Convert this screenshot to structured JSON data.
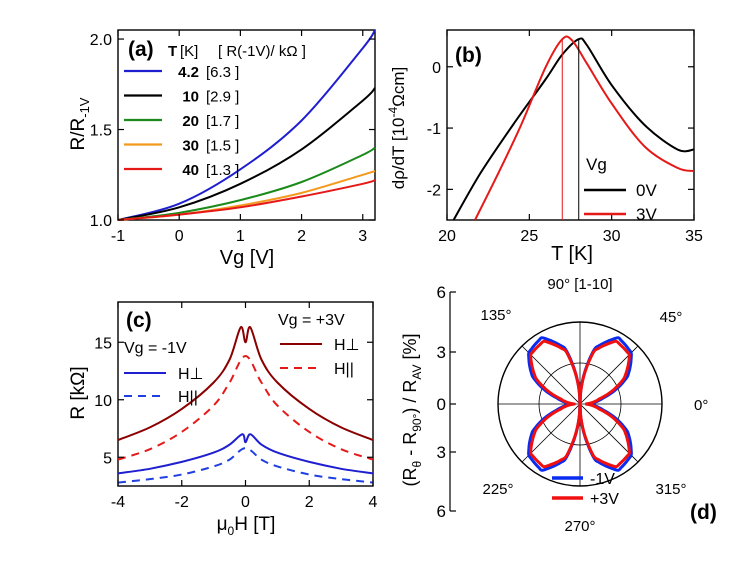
{
  "colors": {
    "blue": "#1f1fd0",
    "black": "#000000",
    "green": "#1a8a1a",
    "orange": "#f39a1e",
    "red": "#e61919",
    "darkred": "#8b0000",
    "dashblue": "#1f3fe0",
    "dashred": "#e61919",
    "pure_blue": "#0a2cf0",
    "pure_red": "#f01010"
  },
  "chart_data": [
    {
      "panel": "(a)",
      "type": "line",
      "xlabel": "Vg [V]",
      "ylabel": "R/R-1V",
      "xlim": [
        -1,
        3.2
      ],
      "ylim": [
        1.0,
        2.05
      ],
      "xticks": [
        "-1",
        "0",
        "1",
        "2",
        "3"
      ],
      "yticks": [
        "1.0",
        "1.5",
        "2.0"
      ],
      "legend_header": {
        "t": "T",
        "unit": "[K]",
        "r": "[ R(-1V)/ kΩ ]"
      },
      "series": [
        {
          "name": "4.2",
          "r": "[6.3 ]",
          "color": "blue",
          "points": [
            [
              -1,
              1.0
            ],
            [
              0,
              1.09
            ],
            [
              1,
              1.28
            ],
            [
              2,
              1.55
            ],
            [
              3,
              1.95
            ],
            [
              3.2,
              2.05
            ]
          ]
        },
        {
          "name": "10",
          "r": "[2.9 ]",
          "color": "black",
          "points": [
            [
              -1,
              1.0
            ],
            [
              0,
              1.07
            ],
            [
              1,
              1.2
            ],
            [
              2,
              1.39
            ],
            [
              3,
              1.66
            ],
            [
              3.2,
              1.73
            ]
          ]
        },
        {
          "name": "20",
          "r": "[1.7 ]",
          "color": "green",
          "points": [
            [
              -1,
              1.0
            ],
            [
              0,
              1.04
            ],
            [
              1,
              1.11
            ],
            [
              2,
              1.21
            ],
            [
              3,
              1.36
            ],
            [
              3.2,
              1.4
            ]
          ]
        },
        {
          "name": "30",
          "r": "[1.5 ]",
          "color": "orange",
          "points": [
            [
              -1,
              1.0
            ],
            [
              0,
              1.03
            ],
            [
              1,
              1.08
            ],
            [
              2,
              1.15
            ],
            [
              3,
              1.25
            ],
            [
              3.2,
              1.27
            ]
          ]
        },
        {
          "name": "40",
          "r": "[1.3 ]",
          "color": "red",
          "points": [
            [
              -1,
              1.0
            ],
            [
              0,
              1.03
            ],
            [
              1,
              1.07
            ],
            [
              2,
              1.13
            ],
            [
              3,
              1.2
            ],
            [
              3.2,
              1.22
            ]
          ]
        }
      ]
    },
    {
      "panel": "(b)",
      "type": "line",
      "xlabel": "T [K]",
      "ylabel": "dρ/dT [10-4Ωcm]",
      "xlim": [
        20,
        35
      ],
      "ylim": [
        -2.5,
        0.6
      ],
      "xticks": [
        "20",
        "25",
        "30",
        "35"
      ],
      "yticks": [
        "0",
        "-1",
        "-2"
      ],
      "legend_title": "Vg",
      "markers": [
        27.0,
        28.0
      ],
      "series": [
        {
          "name": "0V",
          "color": "black",
          "points": [
            [
              20.4,
              -2.5
            ],
            [
              22,
              -1.75
            ],
            [
              24,
              -0.95
            ],
            [
              26,
              -0.2
            ],
            [
              27,
              0.2
            ],
            [
              28,
              0.45
            ],
            [
              28.5,
              0.35
            ],
            [
              30,
              -0.3
            ],
            [
              32,
              -0.95
            ],
            [
              34,
              -1.35
            ],
            [
              35,
              -1.35
            ]
          ]
        },
        {
          "name": "3V",
          "color": "red",
          "points": [
            [
              21.7,
              -2.5
            ],
            [
              23,
              -1.8
            ],
            [
              24.5,
              -0.95
            ],
            [
              26,
              0.0
            ],
            [
              27,
              0.45
            ],
            [
              27.6,
              0.43
            ],
            [
              28.5,
              0.05
            ],
            [
              30,
              -0.6
            ],
            [
              32,
              -1.3
            ],
            [
              34,
              -1.65
            ],
            [
              35,
              -1.7
            ]
          ]
        }
      ]
    },
    {
      "panel": "(c)",
      "type": "line",
      "xlabel": "μ0H [T]",
      "ylabel": "R [kΩ]",
      "xlim": [
        -4,
        4
      ],
      "ylim": [
        2.5,
        18.5
      ],
      "xticks": [
        "-4",
        "-2",
        "0",
        "2",
        "4"
      ],
      "yticks": [
        "5",
        "10",
        "15"
      ],
      "groups": [
        {
          "label": "Vg = -1V",
          "perp": "H⊥",
          "par": "H||"
        },
        {
          "label": "Vg = +3V",
          "perp": "H⊥",
          "par": "H||"
        }
      ],
      "series": [
        {
          "name": "+3V H⊥",
          "color": "darkred",
          "dash": false,
          "points": [
            [
              -4,
              6.5
            ],
            [
              -3,
              7.6
            ],
            [
              -2,
              9.2
            ],
            [
              -1,
              11.5
            ],
            [
              -0.5,
              13.5
            ],
            [
              -0.15,
              16.3
            ],
            [
              0,
              15.0
            ],
            [
              0.15,
              16.3
            ],
            [
              0.5,
              13.5
            ],
            [
              1,
              11.5
            ],
            [
              2,
              9.2
            ],
            [
              3,
              7.6
            ],
            [
              4,
              6.5
            ]
          ]
        },
        {
          "name": "+3V H||",
          "color": "dashred",
          "dash": true,
          "points": [
            [
              -4,
              4.8
            ],
            [
              -3,
              5.7
            ],
            [
              -2,
              7.2
            ],
            [
              -1,
              9.5
            ],
            [
              -0.5,
              11.5
            ],
            [
              0,
              13.8
            ],
            [
              0.5,
              11.5
            ],
            [
              1,
              9.5
            ],
            [
              2,
              7.2
            ],
            [
              3,
              5.7
            ],
            [
              4,
              4.8
            ]
          ]
        },
        {
          "name": "-1V H⊥",
          "color": "blue",
          "dash": false,
          "points": [
            [
              -4,
              3.6
            ],
            [
              -3,
              4.0
            ],
            [
              -2,
              4.6
            ],
            [
              -1,
              5.4
            ],
            [
              -0.5,
              6.1
            ],
            [
              -0.1,
              7.0
            ],
            [
              0,
              6.3
            ],
            [
              0.15,
              7.0
            ],
            [
              0.5,
              6.1
            ],
            [
              1,
              5.4
            ],
            [
              2,
              4.6
            ],
            [
              3,
              4.0
            ],
            [
              4,
              3.6
            ]
          ]
        },
        {
          "name": "-1V H||",
          "color": "dashblue",
          "dash": true,
          "points": [
            [
              -4,
              2.8
            ],
            [
              -3,
              3.1
            ],
            [
              -2,
              3.5
            ],
            [
              -1,
              4.2
            ],
            [
              -0.5,
              4.8
            ],
            [
              0,
              5.8
            ],
            [
              0.5,
              4.8
            ],
            [
              1,
              4.2
            ],
            [
              2,
              3.5
            ],
            [
              3,
              3.1
            ],
            [
              4,
              2.8
            ]
          ]
        }
      ]
    },
    {
      "panel": "(d)",
      "type": "polar",
      "ylabel": "(Rθ - R90°) / RAV [%]",
      "radial_ticks": [
        "6",
        "3",
        "0",
        "3",
        "6"
      ],
      "angle_labels": {
        "a0": "0°",
        "a45": "45°",
        "a90": "90° [1-10]",
        "a135": "135°",
        "a225": "225°",
        "a270": "270°",
        "a315": "315°"
      },
      "series": [
        {
          "name": "-1V",
          "color": "pure_blue",
          "profile_deg": [
            [
              0,
              0.5
            ],
            [
              15,
              1.8
            ],
            [
              30,
              4.0
            ],
            [
              45,
              5.3
            ],
            [
              60,
              5.6
            ],
            [
              75,
              4.2
            ],
            [
              90,
              0.0
            ]
          ]
        },
        {
          "name": "+3V",
          "color": "pure_red",
          "profile_deg": [
            [
              0,
              0.4
            ],
            [
              15,
              1.5
            ],
            [
              30,
              3.7
            ],
            [
              45,
              5.1
            ],
            [
              60,
              5.3
            ],
            [
              75,
              4.0
            ],
            [
              90,
              0.0
            ]
          ]
        }
      ]
    }
  ]
}
